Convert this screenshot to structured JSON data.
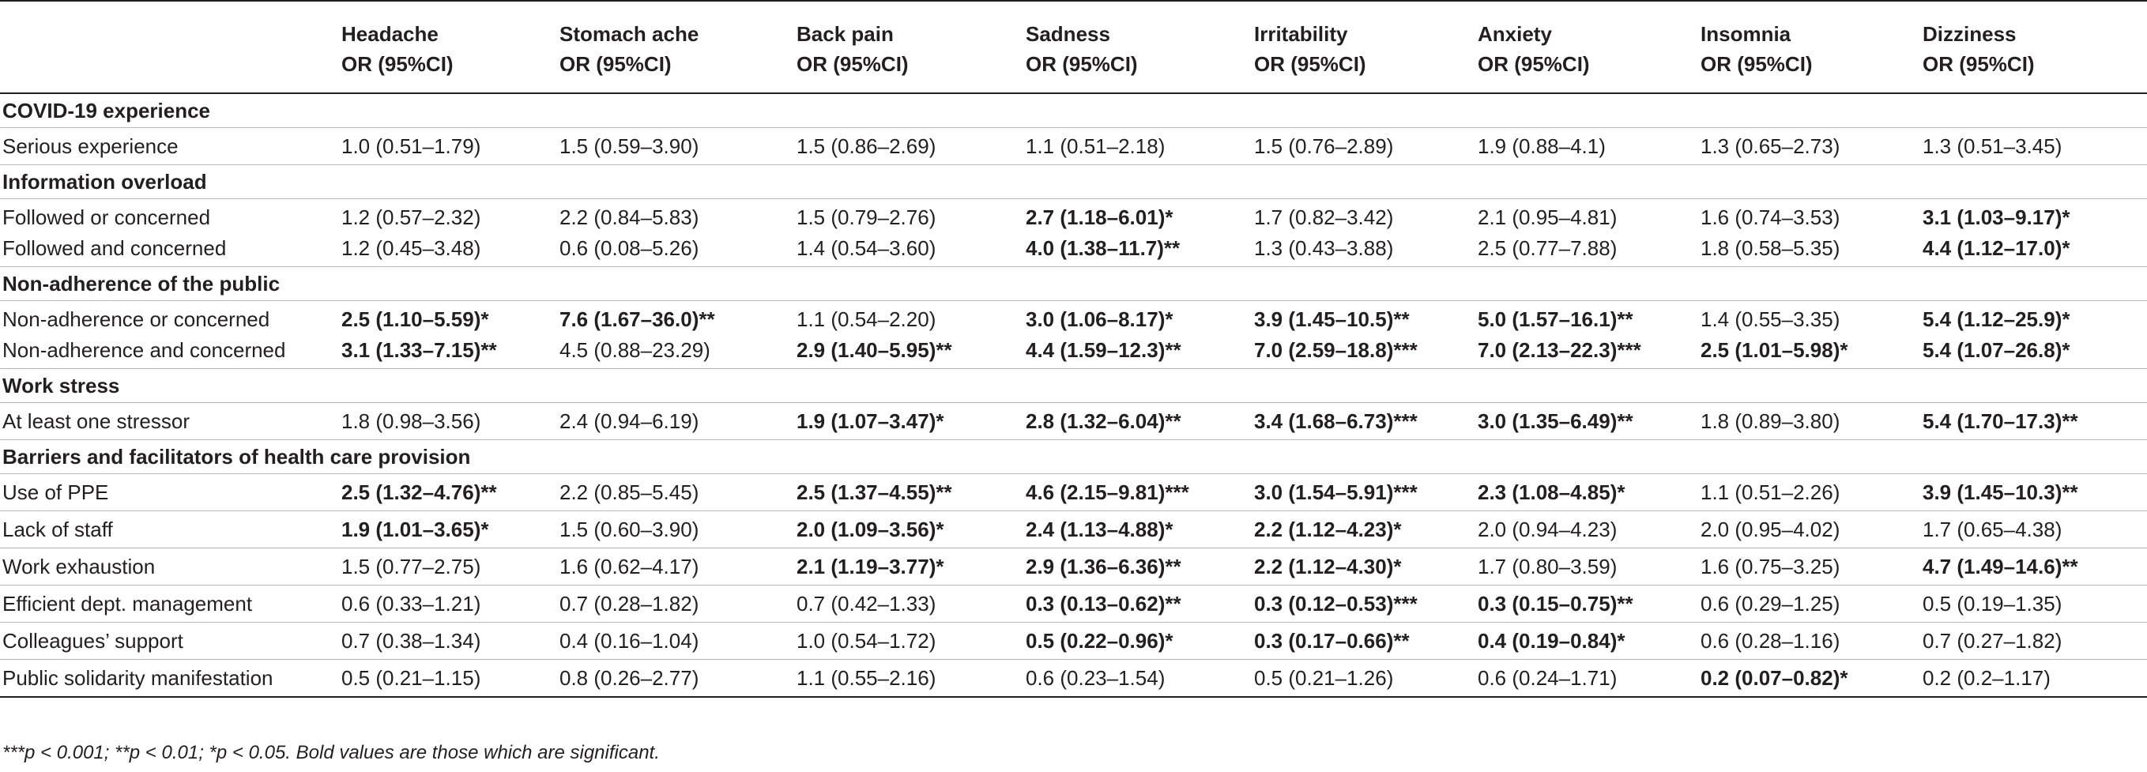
{
  "header": {
    "row_label": "",
    "columns": [
      {
        "name": "Headache",
        "sub": "OR (95%CI)"
      },
      {
        "name": "Stomach ache",
        "sub": "OR (95%CI)"
      },
      {
        "name": "Back pain",
        "sub": "OR (95%CI)"
      },
      {
        "name": "Sadness",
        "sub": "OR (95%CI)"
      },
      {
        "name": "Irritability",
        "sub": "OR (95%CI)"
      },
      {
        "name": "Anxiety",
        "sub": "OR (95%CI)"
      },
      {
        "name": "Insomnia",
        "sub": "OR (95%CI)"
      },
      {
        "name": "Dizziness",
        "sub": "OR (95%CI)"
      }
    ]
  },
  "sections": [
    {
      "title": "COVID-19 experience",
      "rows": [
        {
          "label": "Serious experience",
          "cells": [
            {
              "v": "1.0 (0.51–1.79)",
              "b": false
            },
            {
              "v": "1.5 (0.59–3.90)",
              "b": false
            },
            {
              "v": "1.5 (0.86–2.69)",
              "b": false
            },
            {
              "v": "1.1 (0.51–2.18)",
              "b": false
            },
            {
              "v": "1.5 (0.76–2.89)",
              "b": false
            },
            {
              "v": "1.9 (0.88–4.1)",
              "b": false
            },
            {
              "v": "1.3 (0.65–2.73)",
              "b": false
            },
            {
              "v": "1.3 (0.51–3.45)",
              "b": false
            }
          ]
        }
      ]
    },
    {
      "title": "Information overload",
      "rows": [
        {
          "label": "Followed or concerned",
          "cells": [
            {
              "v": "1.2 (0.57–2.32)",
              "b": false
            },
            {
              "v": "2.2 (0.84–5.83)",
              "b": false
            },
            {
              "v": "1.5 (0.79–2.76)",
              "b": false
            },
            {
              "v": "2.7 (1.18–6.01)*",
              "b": true
            },
            {
              "v": "1.7 (0.82–3.42)",
              "b": false
            },
            {
              "v": "2.1 (0.95–4.81)",
              "b": false
            },
            {
              "v": "1.6 (0.74–3.53)",
              "b": false
            },
            {
              "v": "3.1 (1.03–9.17)*",
              "b": true
            }
          ]
        },
        {
          "label": "Followed and concerned",
          "cells": [
            {
              "v": "1.2 (0.45–3.48)",
              "b": false
            },
            {
              "v": "0.6 (0.08–5.26)",
              "b": false
            },
            {
              "v": "1.4 (0.54–3.60)",
              "b": false
            },
            {
              "v": "4.0 (1.38–11.7)**",
              "b": true
            },
            {
              "v": "1.3 (0.43–3.88)",
              "b": false
            },
            {
              "v": "2.5 (0.77–7.88)",
              "b": false
            },
            {
              "v": "1.8 (0.58–5.35)",
              "b": false
            },
            {
              "v": "4.4 (1.12–17.0)*",
              "b": true
            }
          ]
        }
      ]
    },
    {
      "title": "Non-adherence of the public",
      "rows": [
        {
          "label": "Non-adherence or concerned",
          "cells": [
            {
              "v": "2.5 (1.10–5.59)*",
              "b": true
            },
            {
              "v": "7.6 (1.67–36.0)**",
              "b": true
            },
            {
              "v": "1.1 (0.54–2.20)",
              "b": false
            },
            {
              "v": "3.0 (1.06–8.17)*",
              "b": true
            },
            {
              "v": "3.9 (1.45–10.5)**",
              "b": true
            },
            {
              "v": "5.0 (1.57–16.1)**",
              "b": true
            },
            {
              "v": "1.4 (0.55–3.35)",
              "b": false
            },
            {
              "v": "5.4 (1.12–25.9)*",
              "b": true
            }
          ]
        },
        {
          "label": "Non-adherence and concerned",
          "cells": [
            {
              "v": "3.1 (1.33–7.15)**",
              "b": true
            },
            {
              "v": "4.5 (0.88–23.29)",
              "b": false
            },
            {
              "v": "2.9 (1.40–5.95)**",
              "b": true
            },
            {
              "v": "4.4 (1.59–12.3)**",
              "b": true
            },
            {
              "v": "7.0 (2.59–18.8)***",
              "b": true
            },
            {
              "v": "7.0 (2.13–22.3)***",
              "b": true
            },
            {
              "v": "2.5 (1.01–5.98)*",
              "b": true
            },
            {
              "v": "5.4 (1.07–26.8)*",
              "b": true
            }
          ]
        }
      ]
    },
    {
      "title": "Work stress",
      "rows": [
        {
          "label": "At least one stressor",
          "cells": [
            {
              "v": "1.8 (0.98–3.56)",
              "b": false
            },
            {
              "v": "2.4 (0.94–6.19)",
              "b": false
            },
            {
              "v": "1.9 (1.07–3.47)*",
              "b": true
            },
            {
              "v": "2.8 (1.32–6.04)**",
              "b": true
            },
            {
              "v": "3.4 (1.68–6.73)***",
              "b": true
            },
            {
              "v": "3.0 (1.35–6.49)**",
              "b": true
            },
            {
              "v": "1.8 (0.89–3.80)",
              "b": false
            },
            {
              "v": "5.4 (1.70–17.3)**",
              "b": true
            }
          ]
        }
      ]
    },
    {
      "title": "Barriers and facilitators of health care provision",
      "rows": [
        {
          "label": "Use of PPE",
          "cells": [
            {
              "v": "2.5 (1.32–4.76)**",
              "b": true
            },
            {
              "v": "2.2 (0.85–5.45)",
              "b": false
            },
            {
              "v": "2.5 (1.37–4.55)**",
              "b": true
            },
            {
              "v": "4.6 (2.15–9.81)***",
              "b": true
            },
            {
              "v": "3.0 (1.54–5.91)***",
              "b": true
            },
            {
              "v": "2.3 (1.08–4.85)*",
              "b": true
            },
            {
              "v": "1.1 (0.51–2.26)",
              "b": false
            },
            {
              "v": "3.9 (1.45–10.3)**",
              "b": true
            }
          ]
        },
        {
          "label": "Lack of staff",
          "cells": [
            {
              "v": "1.9 (1.01–3.65)*",
              "b": true
            },
            {
              "v": "1.5 (0.60–3.90)",
              "b": false
            },
            {
              "v": "2.0 (1.09–3.56)*",
              "b": true
            },
            {
              "v": "2.4 (1.13–4.88)*",
              "b": true
            },
            {
              "v": "2.2 (1.12–4.23)*",
              "b": true
            },
            {
              "v": "2.0 (0.94–4.23)",
              "b": false
            },
            {
              "v": "2.0 (0.95–4.02)",
              "b": false
            },
            {
              "v": "1.7 (0.65–4.38)",
              "b": false
            }
          ]
        },
        {
          "label": "Work exhaustion",
          "cells": [
            {
              "v": "1.5 (0.77–2.75)",
              "b": false
            },
            {
              "v": "1.6 (0.62–4.17)",
              "b": false
            },
            {
              "v": "2.1 (1.19–3.77)*",
              "b": true
            },
            {
              "v": "2.9 (1.36–6.36)**",
              "b": true
            },
            {
              "v": "2.2 (1.12–4.30)*",
              "b": true
            },
            {
              "v": "1.7 (0.80–3.59)",
              "b": false
            },
            {
              "v": "1.6 (0.75–3.25)",
              "b": false
            },
            {
              "v": "4.7 (1.49–14.6)**",
              "b": true
            }
          ]
        },
        {
          "label": "Efficient dept. management",
          "cells": [
            {
              "v": "0.6 (0.33–1.21)",
              "b": false
            },
            {
              "v": "0.7 (0.28–1.82)",
              "b": false
            },
            {
              "v": "0.7 (0.42–1.33)",
              "b": false
            },
            {
              "v": "0.3 (0.13–0.62)**",
              "b": true
            },
            {
              "v": "0.3 (0.12–0.53)***",
              "b": true
            },
            {
              "v": "0.3 (0.15–0.75)**",
              "b": true
            },
            {
              "v": "0.6 (0.29–1.25)",
              "b": false
            },
            {
              "v": "0.5 (0.19–1.35)",
              "b": false
            }
          ]
        },
        {
          "label": "Colleagues’ support",
          "cells": [
            {
              "v": "0.7 (0.38–1.34)",
              "b": false
            },
            {
              "v": "0.4 (0.16–1.04)",
              "b": false
            },
            {
              "v": "1.0 (0.54–1.72)",
              "b": false
            },
            {
              "v": "0.5 (0.22–0.96)*",
              "b": true
            },
            {
              "v": "0.3 (0.17–0.66)**",
              "b": true
            },
            {
              "v": "0.4 (0.19–0.84)*",
              "b": true
            },
            {
              "v": "0.6 (0.28–1.16)",
              "b": false
            },
            {
              "v": "0.7 (0.27–1.82)",
              "b": false
            }
          ]
        },
        {
          "label": "Public solidarity manifestation",
          "cells": [
            {
              "v": "0.5 (0.21–1.15)",
              "b": false
            },
            {
              "v": "0.8 (0.26–2.77)",
              "b": false
            },
            {
              "v": "1.1 (0.55–2.16)",
              "b": false
            },
            {
              "v": "0.6 (0.23–1.54)",
              "b": false
            },
            {
              "v": "0.5 (0.21–1.26)",
              "b": false
            },
            {
              "v": "0.6 (0.24–1.71)",
              "b": false
            },
            {
              "v": "0.2 (0.07–0.82)*",
              "b": true
            },
            {
              "v": "0.2 (0.2–1.17)",
              "b": false
            }
          ]
        }
      ]
    }
  ],
  "footnote": "***p < 0.001; **p < 0.01; *p < 0.05. Bold values are those which are significant."
}
